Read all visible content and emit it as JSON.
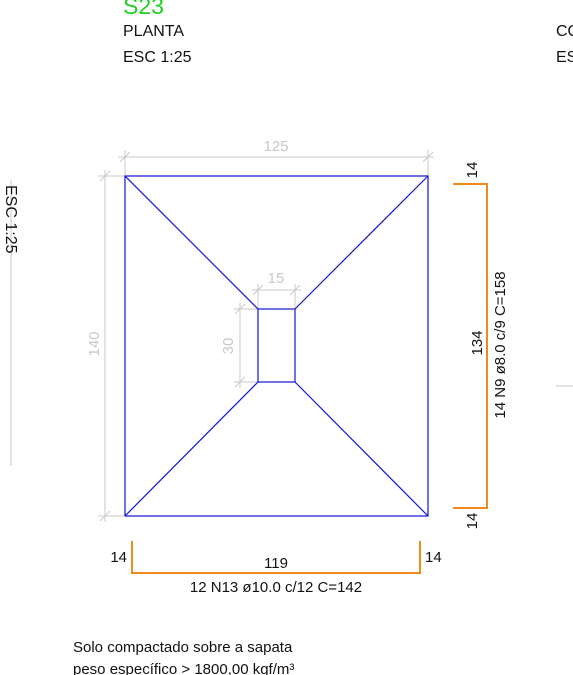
{
  "header": {
    "title": "S23",
    "view": "PLANTA",
    "scale": "ESC 1:25",
    "right_view_partial": "CO",
    "right_scale_partial": "ES",
    "left_scale_rotated_partial": "ESC 1:25"
  },
  "footing": {
    "width_dim": "125",
    "depth_dim": "140",
    "pedestal_width_dim": "15",
    "pedestal_depth_dim": "30"
  },
  "rebar_bottom": {
    "left_hook": "14",
    "length": "119",
    "right_hook": "14",
    "label": "12 N13 ø10.0 c/12  C=142"
  },
  "rebar_right": {
    "top_hook": "14",
    "length": "134",
    "bottom_hook": "14",
    "label": "14 N9 ø8.0 c/9  C=158"
  },
  "note": {
    "line1": "Solo compactado sobre a sapata",
    "line2": "peso específico > 1800,00 kgf/m³"
  },
  "colors": {
    "title": "#1fd11f",
    "footing_lines": "#1414d4",
    "rebar": "#f08a1c",
    "dimensions": "#c9c9c9"
  }
}
